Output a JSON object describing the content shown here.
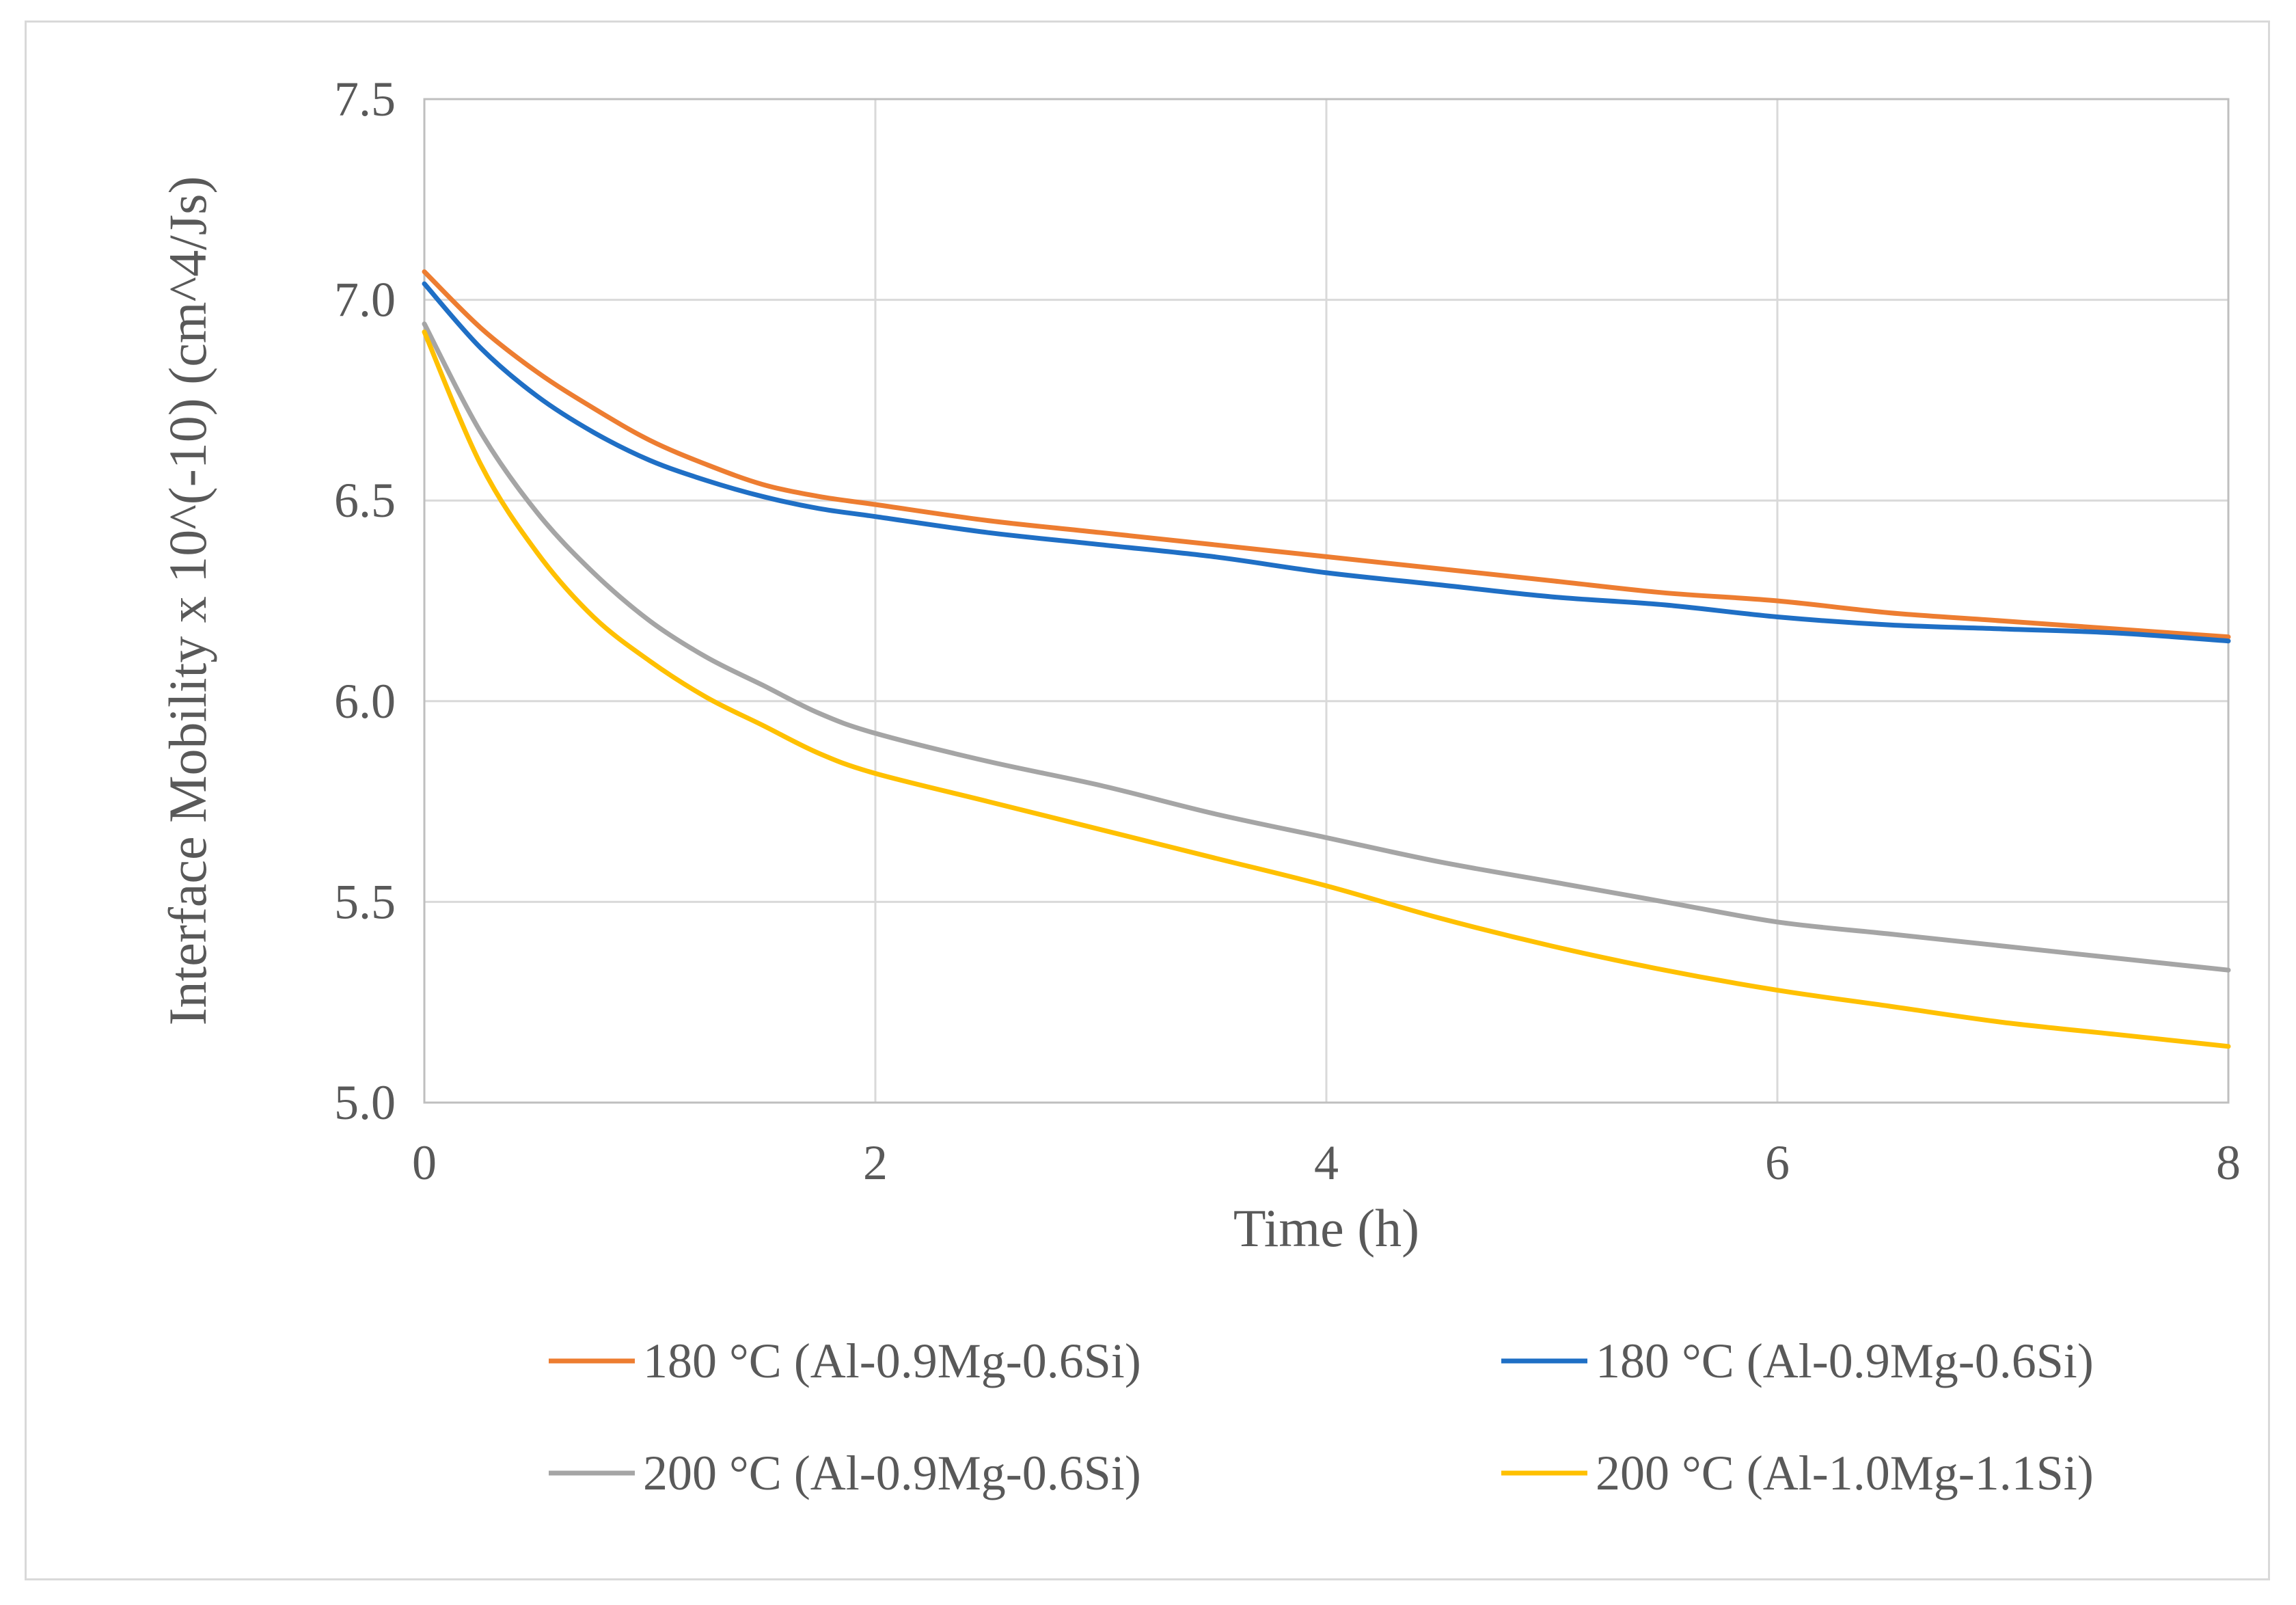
{
  "chart_data": {
    "type": "line",
    "title": "",
    "xlabel": "Time (h)",
    "ylabel": "Interface Mobility x 10^(-10)  (cm^4/Js)",
    "xlim": [
      0,
      8
    ],
    "ylim": [
      5.0,
      7.5
    ],
    "xticks": [
      "0",
      "2",
      "4",
      "6",
      "8"
    ],
    "yticks": [
      "5.0",
      "5.5",
      "6.0",
      "6.5",
      "7.0",
      "7.5"
    ],
    "grid": true,
    "legend_position": "bottom",
    "x": [
      0,
      0.25,
      0.5,
      0.75,
      1,
      1.25,
      1.5,
      1.75,
      2,
      2.5,
      3,
      3.5,
      4,
      4.5,
      5,
      5.5,
      6,
      6.5,
      7,
      7.5,
      8
    ],
    "series": [
      {
        "name": "180 °C (Al-0.9Mg-0.6Si)",
        "color": "#ed7d31",
        "values": [
          7.07,
          6.93,
          6.82,
          6.73,
          6.65,
          6.59,
          6.54,
          6.51,
          6.49,
          6.45,
          6.42,
          6.39,
          6.36,
          6.33,
          6.3,
          6.27,
          6.25,
          6.22,
          6.2,
          6.18,
          6.16
        ]
      },
      {
        "name": "180 °C (Al-0.9Mg-0.6Si)",
        "color": "#1f6fc5",
        "values": [
          7.04,
          6.88,
          6.76,
          6.67,
          6.6,
          6.55,
          6.51,
          6.48,
          6.46,
          6.42,
          6.39,
          6.36,
          6.32,
          6.29,
          6.26,
          6.24,
          6.21,
          6.19,
          6.18,
          6.17,
          6.15
        ]
      },
      {
        "name": "200 °C (Al-0.9Mg-0.6Si)",
        "color": "#a5a5a5",
        "values": [
          6.94,
          6.67,
          6.47,
          6.32,
          6.2,
          6.11,
          6.04,
          5.97,
          5.92,
          5.85,
          5.79,
          5.72,
          5.66,
          5.6,
          5.55,
          5.5,
          5.45,
          5.42,
          5.39,
          5.36,
          5.33
        ]
      },
      {
        "name": "200 °C (Al-1.0Mg-1.1Si)",
        "color": "#ffc000",
        "values": [
          6.92,
          6.59,
          6.37,
          6.21,
          6.1,
          6.01,
          5.94,
          5.87,
          5.82,
          5.75,
          5.68,
          5.61,
          5.54,
          5.46,
          5.39,
          5.33,
          5.28,
          5.24,
          5.2,
          5.17,
          5.14
        ]
      }
    ]
  }
}
